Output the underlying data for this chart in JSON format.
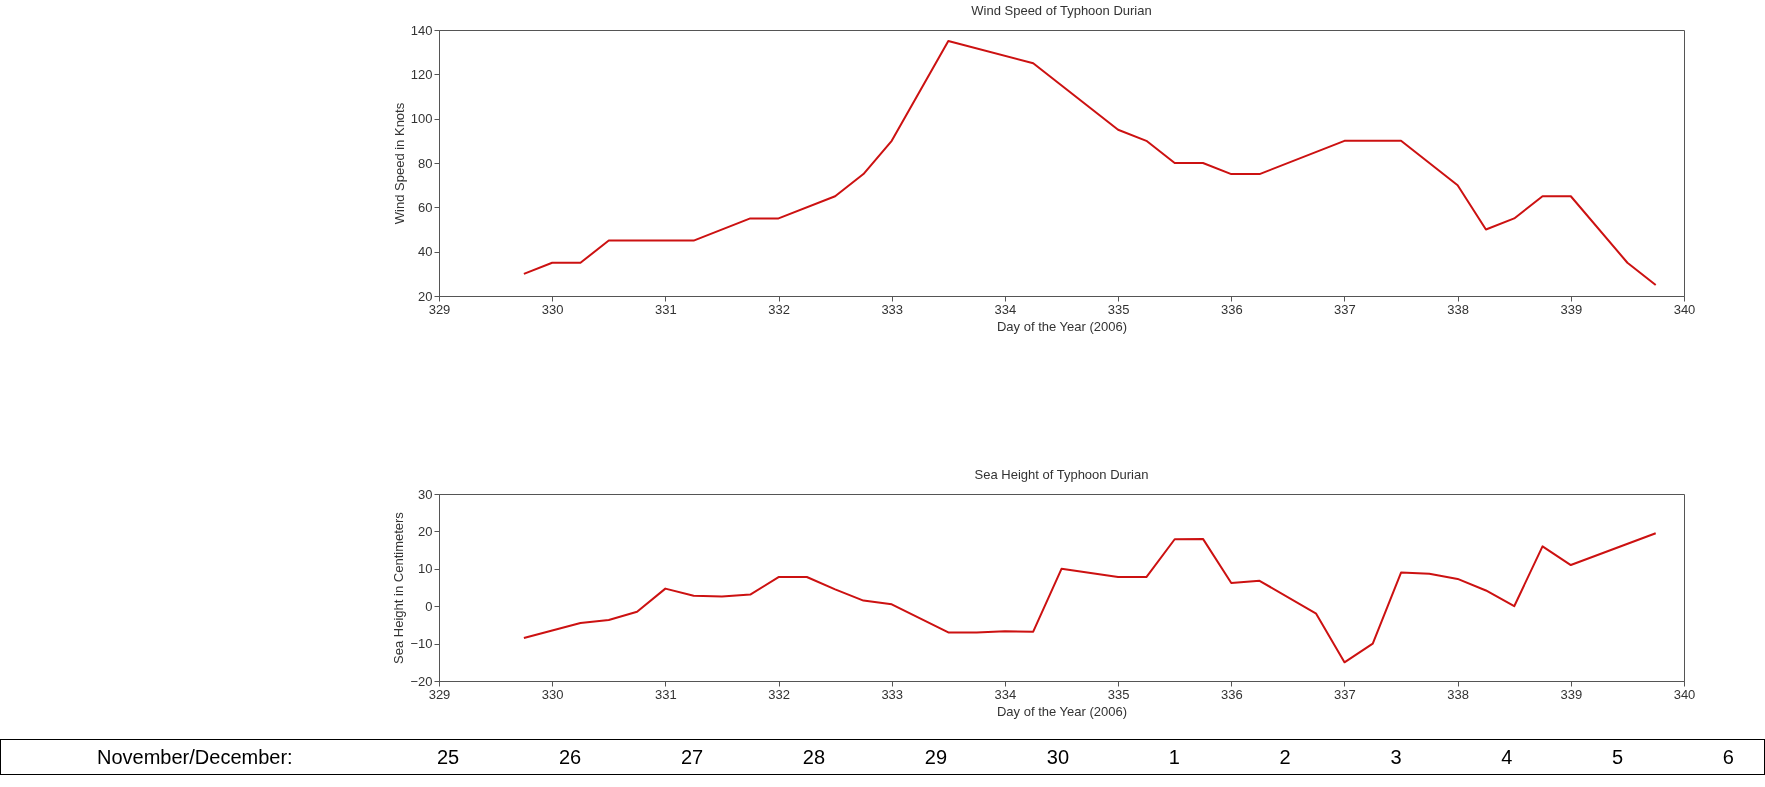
{
  "chart_data": [
    {
      "type": "line",
      "title": "Wind Speed of Typhoon Durian",
      "xlabel": "Day of the Year (2006)",
      "ylabel": "Wind Speed in Knots",
      "x": [
        329.75,
        330,
        330.25,
        330.5,
        331.25,
        331.75,
        332,
        332.5,
        332.75,
        333,
        333.5,
        334.25,
        335,
        335.25,
        335.5,
        335.75,
        336,
        336.25,
        337,
        337.5,
        338,
        338.25,
        338.5,
        338.75,
        339,
        339.5,
        339.75
      ],
      "series": [
        {
          "color": "#cc1111",
          "values": [
            30,
            35,
            35,
            45,
            45,
            55,
            55,
            65,
            75,
            90,
            135,
            125,
            95,
            90,
            80,
            80,
            75,
            75,
            90,
            90,
            70,
            50,
            55,
            65,
            65,
            35,
            25
          ]
        }
      ],
      "xlim": [
        329,
        340
      ],
      "xticks": [
        329,
        330,
        331,
        332,
        333,
        334,
        335,
        336,
        337,
        338,
        339,
        340
      ],
      "ylim": [
        20,
        140
      ],
      "yticks": [
        20,
        40,
        60,
        80,
        100,
        120,
        140
      ]
    },
    {
      "type": "line",
      "title": "Sea Height of Typhoon Durian",
      "xlabel": "Day of the Year (2006)",
      "ylabel": "Sea Height in Centimeters",
      "x": [
        329.75,
        330,
        330.25,
        330.5,
        330.75,
        331,
        331.25,
        331.5,
        331.75,
        332,
        332.25,
        332.5,
        332.75,
        333,
        333.5,
        333.75,
        334,
        334.25,
        334.5,
        335,
        335.25,
        335.5,
        335.75,
        336,
        336.25,
        336.75,
        337,
        337.25,
        337.5,
        337.75,
        338,
        338.25,
        338.5,
        338.75,
        339,
        339.75
      ],
      "series": [
        {
          "color": "#cc1111",
          "values": [
            -8.5,
            -6.5,
            -4.5,
            -3.7,
            -1.5,
            4.7,
            2.8,
            2.6,
            3.1,
            7.8,
            7.8,
            4.5,
            1.5,
            0.5,
            -7,
            -7,
            -6.7,
            -6.8,
            10,
            7.8,
            7.8,
            17.9,
            18,
            6.2,
            6.8,
            -2,
            -15,
            -10,
            9,
            8.7,
            7.3,
            4.2,
            0,
            16,
            11,
            19.5
          ]
        }
      ],
      "xlim": [
        329,
        340
      ],
      "xticks": [
        329,
        330,
        331,
        332,
        333,
        334,
        335,
        336,
        337,
        338,
        339,
        340
      ],
      "ylim": [
        -20,
        30
      ],
      "yticks": [
        -20,
        -10,
        0,
        10,
        20,
        30
      ],
      "annotations": [
        "November/December: 25 26 27 28 29 30 1 2 3 4 5 6"
      ]
    }
  ]
}
